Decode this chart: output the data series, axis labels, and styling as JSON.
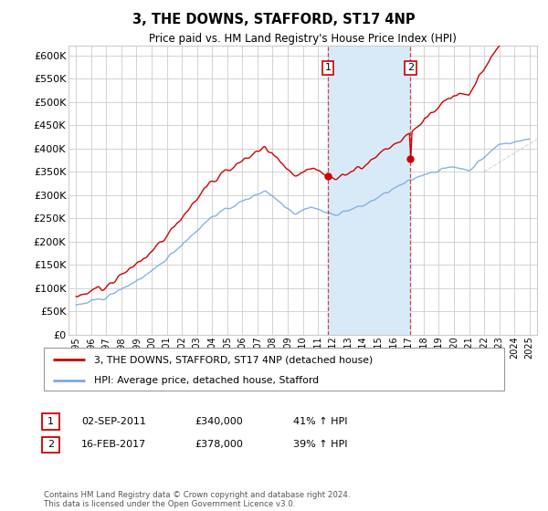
{
  "title": "3, THE DOWNS, STAFFORD, ST17 4NP",
  "subtitle": "Price paid vs. HM Land Registry's House Price Index (HPI)",
  "ylim": [
    0,
    620000
  ],
  "ytick_vals": [
    0,
    50000,
    100000,
    150000,
    200000,
    250000,
    300000,
    350000,
    400000,
    450000,
    500000,
    550000,
    600000
  ],
  "sale1_date": 2011.67,
  "sale1_price": 340000,
  "sale1_label": "1",
  "sale1_display": "02-SEP-2011",
  "sale1_amount": "£340,000",
  "sale1_pct": "41% ↑ HPI",
  "sale2_date": 2017.12,
  "sale2_price": 378000,
  "sale2_label": "2",
  "sale2_display": "16-FEB-2017",
  "sale2_amount": "£378,000",
  "sale2_pct": "39% ↑ HPI",
  "hpi_color": "#7aaadd",
  "price_color": "#cc0000",
  "background_color": "#ffffff",
  "plot_bg_color": "#ffffff",
  "shade_color": "#d8eaf8",
  "grid_color": "#cccccc",
  "footer": "Contains HM Land Registry data © Crown copyright and database right 2024.\nThis data is licensed under the Open Government Licence v3.0.",
  "legend_line1": "3, THE DOWNS, STAFFORD, ST17 4NP (detached house)",
  "legend_line2": "HPI: Average price, detached house, Stafford",
  "xlim_left": 1994.5,
  "xlim_right": 2025.5
}
